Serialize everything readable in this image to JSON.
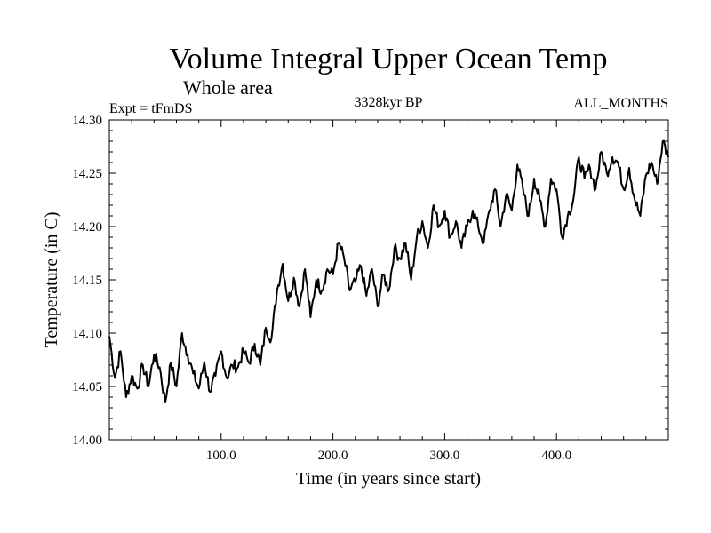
{
  "chart_data": {
    "type": "line",
    "title": "Volume Integral Upper Ocean Temp",
    "subtitle": "Whole area",
    "annotations": {
      "left": "Expt = tFmDS",
      "center": "3328kyr BP",
      "right": "ALL_MONTHS"
    },
    "xlabel": "Time (in years since start)",
    "ylabel": "Temperature (in C)",
    "xlim": [
      0,
      500
    ],
    "ylim": [
      14.0,
      14.3
    ],
    "x_ticks": [
      100,
      200,
      300,
      400
    ],
    "x_tick_labels": [
      "100.0",
      "200.0",
      "300.0",
      "400.0"
    ],
    "y_ticks": [
      14.0,
      14.05,
      14.1,
      14.15,
      14.2,
      14.25,
      14.3
    ],
    "y_tick_labels": [
      "14.00",
      "14.05",
      "14.10",
      "14.15",
      "14.20",
      "14.25",
      "14.30"
    ],
    "grid": false,
    "series": [
      {
        "name": "Temperature",
        "x": [
          0,
          5,
          10,
          15,
          20,
          25,
          30,
          35,
          40,
          45,
          50,
          55,
          60,
          65,
          70,
          75,
          80,
          85,
          90,
          95,
          100,
          105,
          110,
          115,
          120,
          125,
          130,
          135,
          140,
          145,
          150,
          155,
          160,
          165,
          170,
          175,
          180,
          185,
          190,
          195,
          200,
          205,
          210,
          215,
          220,
          225,
          230,
          235,
          240,
          245,
          250,
          255,
          260,
          265,
          270,
          275,
          280,
          285,
          290,
          295,
          300,
          305,
          310,
          315,
          320,
          325,
          330,
          335,
          340,
          345,
          350,
          355,
          360,
          365,
          370,
          375,
          380,
          385,
          390,
          395,
          400,
          405,
          410,
          415,
          420,
          425,
          430,
          435,
          440,
          445,
          450,
          455,
          460,
          465,
          470,
          475,
          480,
          485,
          490,
          495,
          500
        ],
        "values": [
          14.097,
          14.058,
          14.083,
          14.04,
          14.06,
          14.048,
          14.07,
          14.05,
          14.08,
          14.068,
          14.035,
          14.072,
          14.05,
          14.1,
          14.08,
          14.062,
          14.048,
          14.073,
          14.045,
          14.06,
          14.083,
          14.058,
          14.07,
          14.068,
          14.083,
          14.072,
          14.09,
          14.07,
          14.105,
          14.095,
          14.14,
          14.165,
          14.13,
          14.152,
          14.125,
          14.16,
          14.115,
          14.15,
          14.14,
          14.16,
          14.155,
          14.185,
          14.17,
          14.14,
          14.148,
          14.163,
          14.135,
          14.16,
          14.125,
          14.155,
          14.14,
          14.18,
          14.17,
          14.185,
          14.15,
          14.19,
          14.205,
          14.18,
          14.22,
          14.2,
          14.215,
          14.19,
          14.205,
          14.18,
          14.2,
          14.215,
          14.2,
          14.185,
          14.215,
          14.235,
          14.2,
          14.23,
          14.215,
          14.258,
          14.235,
          14.21,
          14.245,
          14.225,
          14.2,
          14.245,
          14.235,
          14.19,
          14.21,
          14.225,
          14.265,
          14.245,
          14.255,
          14.235,
          14.27,
          14.25,
          14.265,
          14.26,
          14.235,
          14.255,
          14.225,
          14.21,
          14.248,
          14.26,
          14.24,
          14.28,
          14.265
        ]
      }
    ]
  }
}
